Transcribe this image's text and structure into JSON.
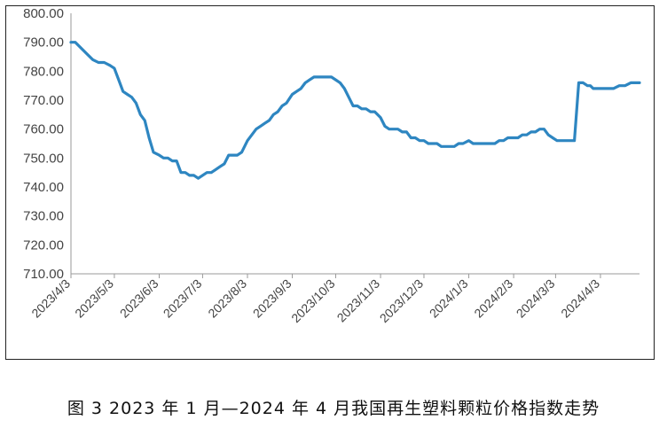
{
  "caption": "图 3  2023 年 1 月—2024 年 4 月我国再生塑料颗粒价格指数走势",
  "chart_data": {
    "type": "line",
    "title": "",
    "xlabel": "",
    "ylabel": "",
    "ylim": [
      710,
      800
    ],
    "y_ticks": [
      710,
      720,
      730,
      740,
      750,
      760,
      770,
      780,
      790,
      800
    ],
    "y_tick_labels": [
      "710.00",
      "720.00",
      "730.00",
      "740.00",
      "750.00",
      "760.00",
      "770.00",
      "780.00",
      "790.00",
      "800.00"
    ],
    "x_ticks": [
      "2023/4/3",
      "2023/5/3",
      "2023/6/3",
      "2023/7/3",
      "2023/8/3",
      "2023/9/3",
      "2023/10/3",
      "2023/11/3",
      "2023/12/3",
      "2024/1/3",
      "2024/2/3",
      "2024/3/3",
      "2024/4/3"
    ],
    "x_range": [
      "2023-04-03",
      "2024-04-30"
    ],
    "grid": false,
    "legend": "none",
    "line_color": "#2e86c1",
    "series": [
      {
        "name": "",
        "x": [
          "2023-04-03",
          "2023-04-06",
          "2023-04-10",
          "2023-04-14",
          "2023-04-18",
          "2023-04-22",
          "2023-04-26",
          "2023-04-30",
          "2023-05-03",
          "2023-05-06",
          "2023-05-09",
          "2023-05-12",
          "2023-05-15",
          "2023-05-18",
          "2023-05-21",
          "2023-05-24",
          "2023-05-27",
          "2023-05-30",
          "2023-06-03",
          "2023-06-06",
          "2023-06-09",
          "2023-06-12",
          "2023-06-15",
          "2023-06-18",
          "2023-06-21",
          "2023-06-24",
          "2023-06-27",
          "2023-06-30",
          "2023-07-03",
          "2023-07-06",
          "2023-07-09",
          "2023-07-12",
          "2023-07-15",
          "2023-07-18",
          "2023-07-21",
          "2023-07-24",
          "2023-07-27",
          "2023-07-30",
          "2023-08-03",
          "2023-08-06",
          "2023-08-09",
          "2023-08-12",
          "2023-08-15",
          "2023-08-18",
          "2023-08-21",
          "2023-08-24",
          "2023-08-27",
          "2023-08-30",
          "2023-09-03",
          "2023-09-06",
          "2023-09-09",
          "2023-09-12",
          "2023-09-15",
          "2023-09-18",
          "2023-09-21",
          "2023-09-24",
          "2023-09-27",
          "2023-09-30",
          "2023-10-03",
          "2023-10-06",
          "2023-10-09",
          "2023-10-12",
          "2023-10-15",
          "2023-10-18",
          "2023-10-21",
          "2023-10-24",
          "2023-10-27",
          "2023-10-30",
          "2023-11-03",
          "2023-11-06",
          "2023-11-09",
          "2023-11-12",
          "2023-11-15",
          "2023-11-18",
          "2023-11-21",
          "2023-11-24",
          "2023-11-27",
          "2023-11-30",
          "2023-12-03",
          "2023-12-06",
          "2023-12-09",
          "2023-12-12",
          "2023-12-15",
          "2023-12-18",
          "2023-12-21",
          "2023-12-24",
          "2023-12-27",
          "2023-12-30",
          "2024-01-03",
          "2024-01-06",
          "2024-01-09",
          "2024-01-12",
          "2024-01-15",
          "2024-01-18",
          "2024-01-21",
          "2024-01-24",
          "2024-01-27",
          "2024-01-30",
          "2024-02-03",
          "2024-02-06",
          "2024-02-09",
          "2024-02-12",
          "2024-02-15",
          "2024-02-18",
          "2024-02-21",
          "2024-02-24",
          "2024-02-27",
          "2024-03-01",
          "2024-03-04",
          "2024-03-07",
          "2024-03-10",
          "2024-03-13",
          "2024-03-16",
          "2024-03-19",
          "2024-03-22",
          "2024-03-25",
          "2024-03-27",
          "2024-03-29",
          "2024-04-01",
          "2024-04-04",
          "2024-04-08",
          "2024-04-12",
          "2024-04-16",
          "2024-04-20",
          "2024-04-24",
          "2024-04-28",
          "2024-04-30"
        ],
        "values": [
          790,
          790,
          788,
          786,
          784,
          783,
          783,
          782,
          781,
          777,
          773,
          772,
          771,
          769,
          765,
          763,
          757,
          752,
          751,
          750,
          750,
          749,
          749,
          745,
          745,
          744,
          744,
          743,
          744,
          745,
          745,
          746,
          747,
          748,
          751,
          751,
          751,
          752,
          756,
          758,
          760,
          761,
          762,
          763,
          765,
          766,
          768,
          769,
          772,
          773,
          774,
          776,
          777,
          778,
          778,
          778,
          778,
          778,
          777,
          776,
          774,
          771,
          768,
          768,
          767,
          767,
          766,
          766,
          764,
          761,
          760,
          760,
          760,
          759,
          759,
          757,
          757,
          756,
          756,
          755,
          755,
          755,
          754,
          754,
          754,
          754,
          755,
          755,
          756,
          755,
          755,
          755,
          755,
          755,
          755,
          756,
          756,
          757,
          757,
          757,
          758,
          758,
          759,
          759,
          760,
          760,
          758,
          757,
          756,
          756,
          756,
          756,
          756,
          776,
          776,
          775,
          775,
          774,
          774,
          774,
          774,
          774,
          775,
          775,
          776,
          776,
          776
        ]
      }
    ]
  }
}
